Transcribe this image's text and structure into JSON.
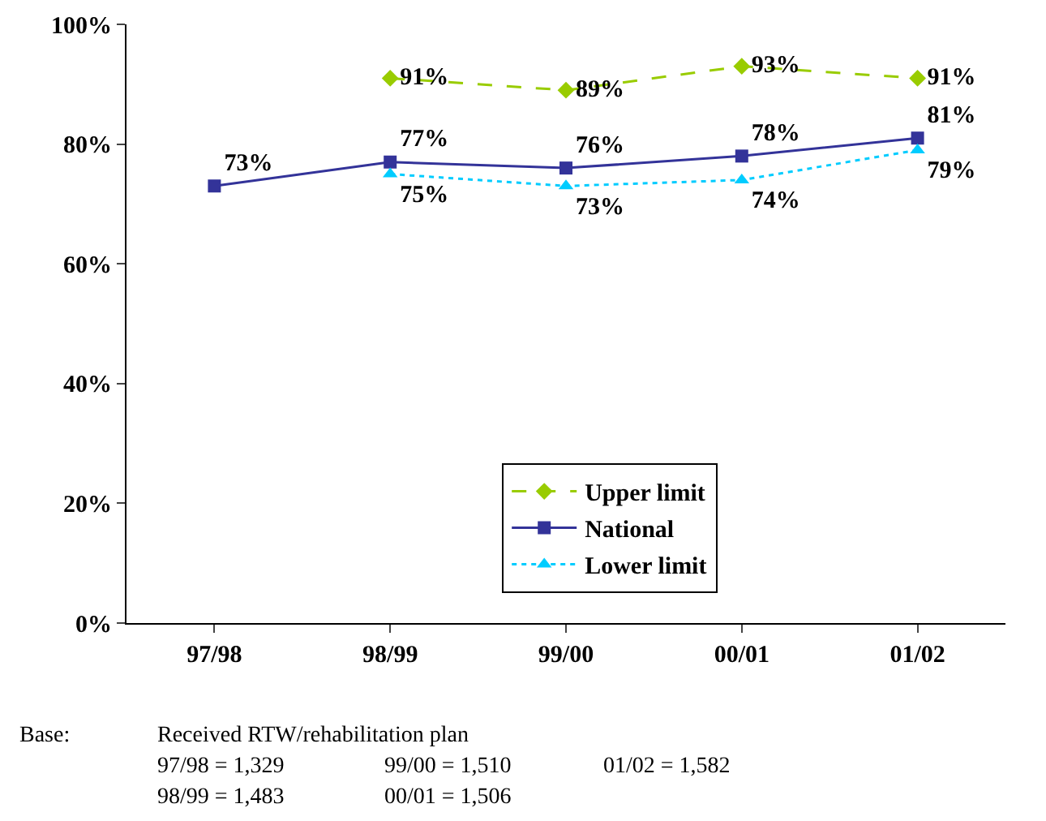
{
  "chart_data": {
    "type": "line",
    "categories": [
      "97/98",
      "98/99",
      "99/00",
      "00/01",
      "01/02"
    ],
    "series": [
      {
        "name": "Upper limit",
        "color": "#99cc00",
        "values": [
          null,
          91,
          89,
          93,
          91
        ],
        "value_labels": [
          null,
          "91%",
          "89%",
          "93%",
          "91%"
        ],
        "marker": "diamond",
        "line_style": "dashed"
      },
      {
        "name": "National",
        "color": "#333399",
        "values": [
          73,
          77,
          76,
          78,
          81
        ],
        "value_labels": [
          "73%",
          "77%",
          "76%",
          "78%",
          "81%"
        ],
        "marker": "square",
        "line_style": "solid"
      },
      {
        "name": "Lower limit",
        "color": "#00ccff",
        "values": [
          null,
          75,
          73,
          74,
          79
        ],
        "value_labels": [
          null,
          "75%",
          "73%",
          "74%",
          "79%"
        ],
        "marker": "triangle",
        "line_style": "dotted"
      }
    ],
    "ylim": [
      0,
      100
    ],
    "yticks": [
      {
        "value": 0,
        "label": "0%"
      },
      {
        "value": 20,
        "label": "20%"
      },
      {
        "value": 40,
        "label": "40%"
      },
      {
        "value": 60,
        "label": "60%"
      },
      {
        "value": 80,
        "label": "80%"
      },
      {
        "value": 100,
        "label": "100%"
      }
    ],
    "grid": false,
    "legend": "bottom",
    "annotations": [
      "Base:",
      "Received RTW/rehabilitation plan",
      "97/98 = 1,329",
      "99/00 = 1,510",
      "01/02 = 1,582",
      "98/99 = 1,483",
      "00/01 = 1,506"
    ]
  }
}
